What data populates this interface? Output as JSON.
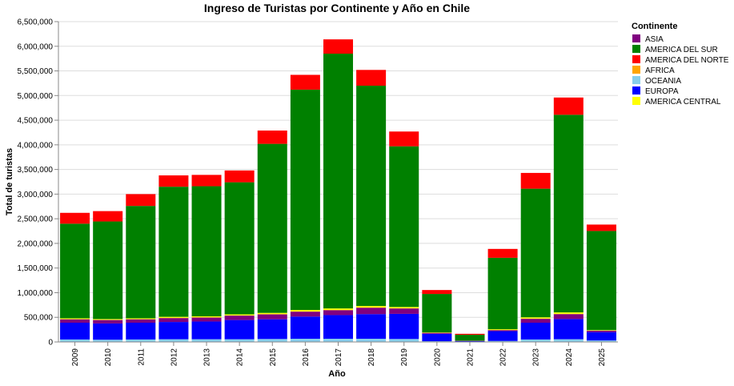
{
  "chart_data": {
    "type": "bar",
    "stacked": true,
    "title": "Ingreso de Turistas por Continente y Año en Chile",
    "xlabel": "Año",
    "ylabel": "Total de turistas",
    "ylim": [
      0,
      6500000
    ],
    "yticks": [
      0,
      500000,
      1000000,
      1500000,
      2000000,
      2500000,
      3000000,
      3500000,
      4000000,
      4500000,
      5000000,
      5500000,
      6000000,
      6500000
    ],
    "ytick_labels": [
      "0",
      "500,000",
      "1,000,000",
      "1,500,000",
      "2,000,000",
      "2,500,000",
      "3,000,000",
      "3,500,000",
      "4,000,000",
      "4,500,000",
      "5,000,000",
      "5,500,000",
      "6,000,000",
      "6,500,000"
    ],
    "grid": true,
    "legend_position": "right",
    "legend_title": "Continente",
    "categories": [
      "2009",
      "2010",
      "2011",
      "2012",
      "2013",
      "2014",
      "2015",
      "2016",
      "2017",
      "2018",
      "2019",
      "2020",
      "2021",
      "2022",
      "2023",
      "2024",
      "2025"
    ],
    "stack_order": [
      "OCEANIA",
      "EUROPA",
      "ASIA",
      "AFRICA",
      "AMERICA CENTRAL",
      "AMERICA DEL SUR",
      "AMERICA DEL NORTE"
    ],
    "series": [
      {
        "name": "ASIA",
        "color": "#800080",
        "values": [
          70000,
          70000,
          70000,
          80000,
          80000,
          90000,
          100000,
          100000,
          100000,
          130000,
          110000,
          20000,
          5000,
          20000,
          80000,
          100000,
          30000
        ]
      },
      {
        "name": "AMERICA DEL SUR",
        "color": "#008000",
        "values": [
          1920000,
          1980000,
          2280000,
          2640000,
          2640000,
          2680000,
          3430000,
          4470000,
          5170000,
          4470000,
          3260000,
          780000,
          120000,
          1450000,
          2610000,
          4010000,
          2010000
        ]
      },
      {
        "name": "AMERICA DEL NORTE",
        "color": "#ff0000",
        "values": [
          220000,
          210000,
          240000,
          230000,
          230000,
          240000,
          270000,
          300000,
          290000,
          320000,
          300000,
          80000,
          20000,
          180000,
          320000,
          350000,
          130000
        ]
      },
      {
        "name": "AFRICA",
        "color": "#ffa500",
        "values": [
          5000,
          5000,
          5000,
          5000,
          5000,
          5000,
          5000,
          5000,
          5000,
          5000,
          5000,
          1000,
          500,
          3000,
          5000,
          5000,
          2000
        ]
      },
      {
        "name": "OCEANIA",
        "color": "#87ceeb",
        "values": [
          50000,
          45000,
          50000,
          55000,
          55000,
          55000,
          60000,
          65000,
          65000,
          65000,
          60000,
          15000,
          3000,
          20000,
          50000,
          55000,
          30000
        ]
      },
      {
        "name": "EUROPA",
        "color": "#0000ff",
        "values": [
          340000,
          330000,
          340000,
          350000,
          360000,
          390000,
          400000,
          450000,
          480000,
          500000,
          510000,
          150000,
          15000,
          200000,
          340000,
          410000,
          170000
        ]
      },
      {
        "name": "AMERICA CENTRAL",
        "color": "#ffff00",
        "values": [
          15000,
          15000,
          15000,
          20000,
          20000,
          20000,
          25000,
          30000,
          30000,
          30000,
          25000,
          8000,
          2000,
          15000,
          25000,
          30000,
          10000
        ]
      }
    ]
  }
}
